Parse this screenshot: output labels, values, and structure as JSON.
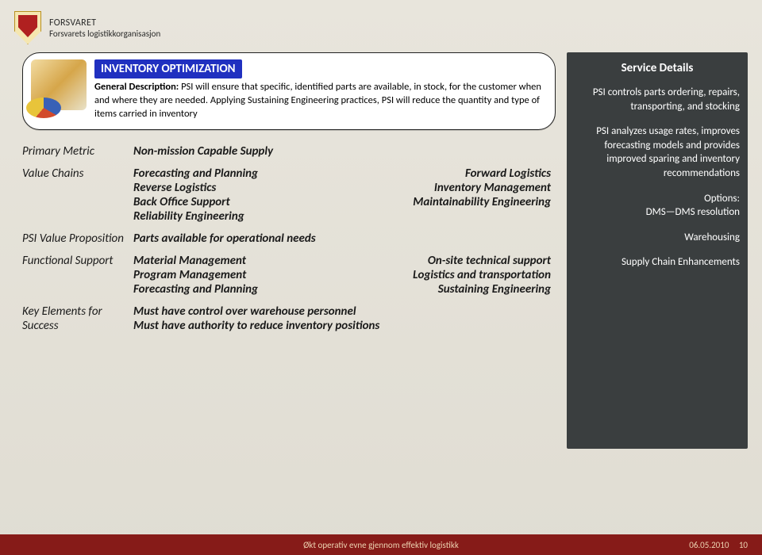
{
  "header": {
    "org1": "FORSVARET",
    "org2": "Forsvarets logistikkorganisasjon"
  },
  "callout": {
    "title": "INVENTORY OPTIMIZATION",
    "label": "General Description:",
    "body": " PSI will ensure that specific, identified parts are available, in stock, for the customer when and where they are needed. Applying Sustaining Engineering practices, PSI will reduce the quantity and type of items carried in inventory"
  },
  "rows": {
    "primary": {
      "label": "Primary Metric",
      "value": "Non-mission Capable Supply"
    },
    "valueChains": {
      "label": "Value Chains",
      "pairs": [
        [
          "Forecasting and Planning",
          "Forward Logistics"
        ],
        [
          "Reverse Logistics",
          "Inventory Management"
        ],
        [
          "Back Office Support",
          "Maintainability Engineering"
        ]
      ],
      "last": "Reliability Engineering"
    },
    "psiValue": {
      "label": "PSI Value Proposition",
      "value": "Parts available for operational needs"
    },
    "functional": {
      "label": "Functional Support",
      "pairs": [
        [
          "Material Management",
          "On-site technical support"
        ],
        [
          "Program Management",
          "Logistics and transportation"
        ],
        [
          "Forecasting and Planning",
          "Sustaining Engineering"
        ]
      ]
    },
    "key": {
      "label": "Key Elements for Success",
      "line1": "Must have control over warehouse personnel",
      "line2": "Must have authority to reduce inventory positions"
    }
  },
  "sidebar": {
    "title": "Service Details",
    "p1": "PSI controls parts ordering, repairs, transporting, and stocking",
    "p2": "PSI analyzes usage rates, improves forecasting models and provides improved sparing and inventory recommendations",
    "opt_label": "Options:",
    "opt1": "DMS—DMS resolution",
    "opt2": "Warehousing",
    "opt3": "Supply Chain Enhancements"
  },
  "footer": {
    "center": "Økt operativ evne gjennom effektiv logistikk",
    "date": "06.05.2010",
    "page": "10"
  }
}
